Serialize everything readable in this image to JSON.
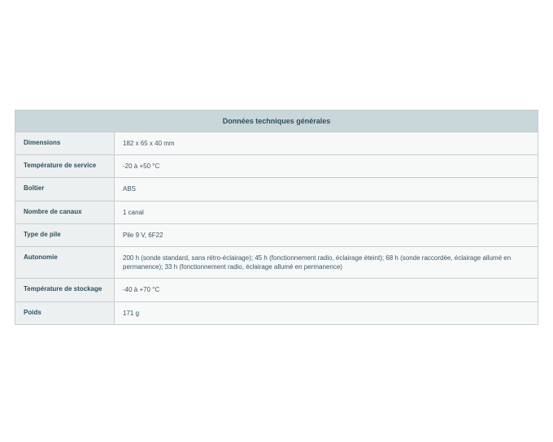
{
  "table": {
    "title": "Données techniques générales",
    "title_background": "#c9d6da",
    "title_text_color": "#2d4f5e",
    "title_fontsize": 9,
    "border_color": "#c5cdd0",
    "label_background": "#ecf0f1",
    "value_background": "#f7f9f9",
    "label_text_color": "#2d4f5e",
    "value_text_color": "#3a5563",
    "label_fontsize": 8,
    "value_fontsize": 8,
    "label_column_width": 122,
    "rows": [
      {
        "label": "Dimensions",
        "value": "182 x 65 x 40 mm"
      },
      {
        "label": "Température de service",
        "value": "-20 à +50 °C"
      },
      {
        "label": "Boîtier",
        "value": "ABS"
      },
      {
        "label": "Nombre de canaux",
        "value": "1 canal"
      },
      {
        "label": "Type de pile",
        "value": "Pile 9 V, 6F22"
      },
      {
        "label": "Autonomie",
        "value": "200 h (sonde standard, sans rétro-éclairage); 45 h (fonctionnement radio, éclairage éteint); 68 h (sonde raccordée, éclairage allumé en permanence); 33 h (fonctionnement radio, éclairage allumé en permanence)"
      },
      {
        "label": "Température de stockage",
        "value": "-40 à +70 °C"
      },
      {
        "label": "Poids",
        "value": "171 g"
      }
    ]
  }
}
